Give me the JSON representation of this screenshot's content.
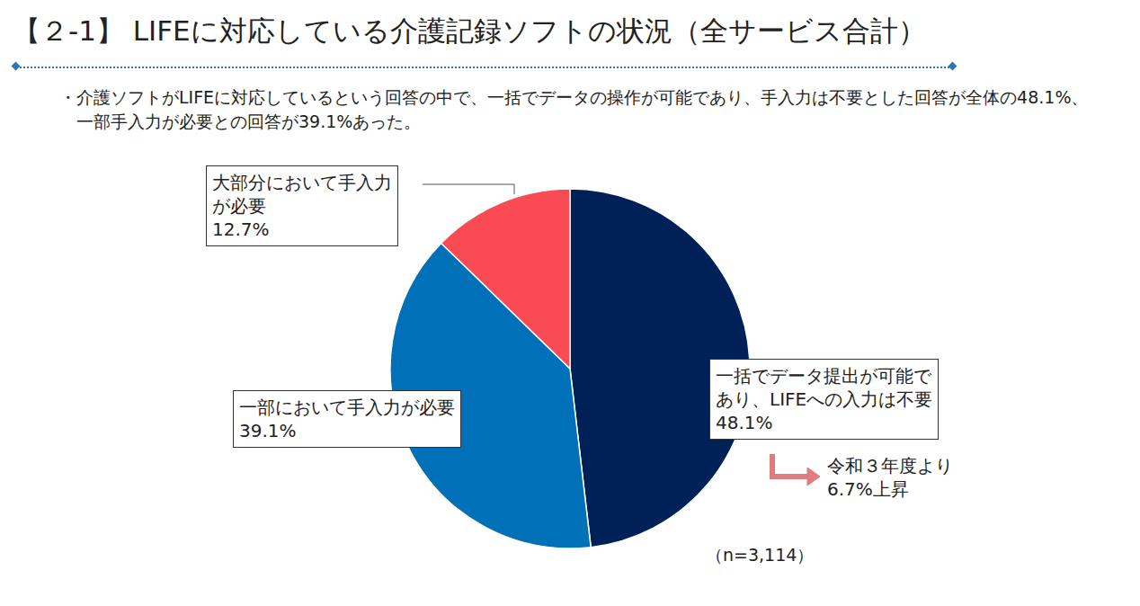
{
  "chart_data": {
    "type": "pie",
    "title": "【２-1】 LIFEに対応している介護記録ソフトの状況（全サービス合計）",
    "subtitle": "・介護ソフトがLIFEに対応しているという回答の中で、一括でデータの操作が可能であり、手入力は不要とした回答が全体の48.1%、一部手入力が必要との回答が39.1%あった。",
    "categories": [
      "一括でデータ提出が可能であり、LIFEへの入力は不要",
      "一部において手入力が必要",
      "大部分において手入力が必要"
    ],
    "values": [
      48.1,
      39.1,
      12.7
    ],
    "value_labels": [
      "48.1%",
      "39.1%",
      "12.7%"
    ],
    "colors": [
      "#002157",
      "#0070b8",
      "#fa4b55"
    ],
    "data_labels": true,
    "annotations": [
      "令和３年度より6.7%上昇",
      "（n=3,114）"
    ]
  }
}
